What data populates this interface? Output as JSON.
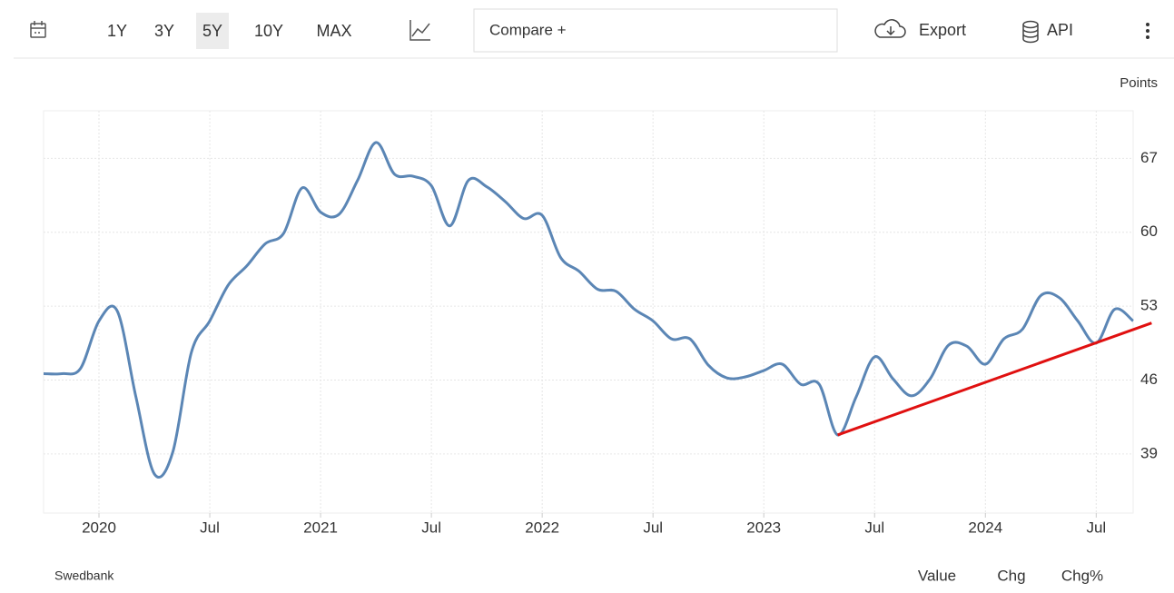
{
  "toolbar": {
    "ranges": [
      "1Y",
      "3Y",
      "5Y",
      "10Y",
      "MAX"
    ],
    "active_range": "5Y",
    "compare": "Compare +",
    "export": "Export",
    "api": "API"
  },
  "chart_data": {
    "type": "line",
    "unit": "Points",
    "color": "#5b86b5",
    "grid": true,
    "x": [
      "2019-10",
      "2019-11",
      "2019-12",
      "2020-01",
      "2020-02",
      "2020-03",
      "2020-04",
      "2020-05",
      "2020-06",
      "2020-07",
      "2020-08",
      "2020-09",
      "2020-10",
      "2020-11",
      "2020-12",
      "2021-01",
      "2021-02",
      "2021-03",
      "2021-04",
      "2021-05",
      "2021-06",
      "2021-07",
      "2021-08",
      "2021-09",
      "2021-10",
      "2021-11",
      "2021-12",
      "2022-01",
      "2022-02",
      "2022-03",
      "2022-04",
      "2022-05",
      "2022-06",
      "2022-07",
      "2022-08",
      "2022-09",
      "2022-10",
      "2022-11",
      "2022-12",
      "2023-01",
      "2023-02",
      "2023-03",
      "2023-04",
      "2023-05",
      "2023-06",
      "2023-07",
      "2023-08",
      "2023-09",
      "2023-10",
      "2023-11",
      "2023-12",
      "2024-01",
      "2024-02",
      "2024-03",
      "2024-04",
      "2024-05",
      "2024-06",
      "2024-07",
      "2024-08",
      "2024-09"
    ],
    "values": [
      46.6,
      46.6,
      47.1,
      51.6,
      52.5,
      44.4,
      37.1,
      39.2,
      48.6,
      51.6,
      55.0,
      56.8,
      58.9,
      59.9,
      64.2,
      61.9,
      61.7,
      64.9,
      68.5,
      65.5,
      65.3,
      64.4,
      60.6,
      64.9,
      64.3,
      62.9,
      61.3,
      61.6,
      57.6,
      56.3,
      54.6,
      54.4,
      52.7,
      51.6,
      49.9,
      49.9,
      47.4,
      46.2,
      46.3,
      46.9,
      47.5,
      45.6,
      45.6,
      40.8,
      44.4,
      48.2,
      46.1,
      44.5,
      46.1,
      49.3,
      49.2,
      47.5,
      49.9,
      50.8,
      54.0,
      53.8,
      51.6,
      49.5,
      52.7,
      51.6
    ],
    "xlim": [
      "2019-10",
      "2024-09"
    ],
    "xticks": [
      {
        "value": "2020-01",
        "label": "2020"
      },
      {
        "value": "2020-07",
        "label": "Jul"
      },
      {
        "value": "2021-01",
        "label": "2021"
      },
      {
        "value": "2021-07",
        "label": "Jul"
      },
      {
        "value": "2022-01",
        "label": "2022"
      },
      {
        "value": "2022-07",
        "label": "Jul"
      },
      {
        "value": "2023-01",
        "label": "2023"
      },
      {
        "value": "2023-07",
        "label": "Jul"
      },
      {
        "value": "2024-01",
        "label": "2024"
      },
      {
        "value": "2024-07",
        "label": "Jul"
      }
    ],
    "ylim": [
      33.4,
      71.5
    ],
    "yticks": [
      39,
      46,
      53,
      60,
      67
    ],
    "trendline": {
      "x": [
        "2023-05",
        "2024-10"
      ],
      "values": [
        40.8,
        51.4
      ],
      "color": "#e01010"
    }
  },
  "footer": {
    "source": "Swedbank",
    "views": [
      "Value",
      "Chg",
      "Chg%"
    ],
    "active_view": "Value"
  }
}
